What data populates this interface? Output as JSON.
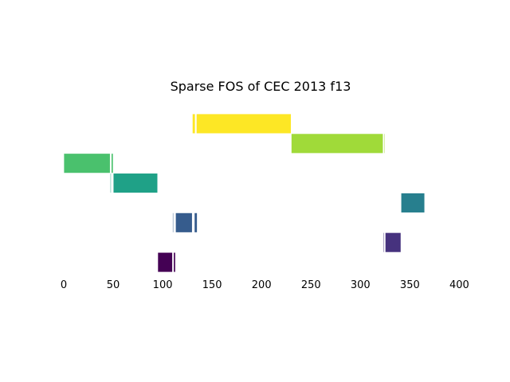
{
  "chart_data": {
    "type": "bar",
    "orientation": "horizontal",
    "title": "Sparse FOS of CEC 2013 f13",
    "xlabel": "",
    "ylabel": "",
    "xlim": [
      -5,
      405
    ],
    "xticks": [
      0,
      50,
      100,
      150,
      200,
      250,
      300,
      350,
      400
    ],
    "x_axis_visible_line": false,
    "y_axis_visible": false,
    "grid": false,
    "rows": [
      {
        "color": "#fde725",
        "segments": [
          [
            130,
            133
          ],
          [
            134,
            230
          ]
        ]
      },
      {
        "color": "#a0da39",
        "segments": [
          [
            230,
            323
          ],
          [
            324,
            325
          ]
        ]
      },
      {
        "color": "#4ac16d",
        "segments": [
          [
            0,
            47
          ],
          [
            48,
            50
          ]
        ]
      },
      {
        "color": "#1fa187",
        "segments": [
          [
            47,
            48
          ],
          [
            50,
            95
          ]
        ]
      },
      {
        "color": "#277f8e",
        "segments": [
          [
            341,
            365
          ]
        ]
      },
      {
        "color": "#365c8d",
        "segments": [
          [
            110,
            111
          ],
          [
            113,
            130
          ],
          [
            132,
            135
          ]
        ]
      },
      {
        "color": "#46327e",
        "segments": [
          [
            323,
            324
          ],
          [
            325,
            341
          ]
        ]
      },
      {
        "color": "#440154",
        "segments": [
          [
            95,
            110
          ],
          [
            111,
            113
          ]
        ]
      }
    ]
  }
}
